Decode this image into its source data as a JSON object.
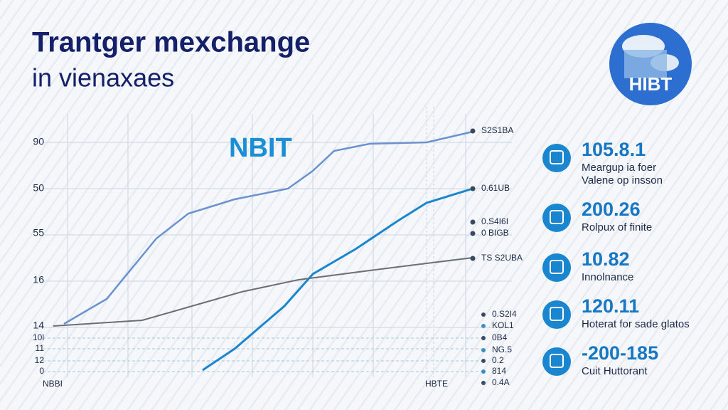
{
  "header": {
    "title_line1": "Trantger mexchange",
    "title_line2": "in vienaxaes"
  },
  "logo": {
    "text": "HIBT"
  },
  "chart": {
    "watermark": "NBIT",
    "y_labels": [
      "90",
      "50",
      "55",
      "16",
      "14",
      "10l",
      "11",
      "12",
      "0"
    ],
    "bottom_labels": [
      "NBBI",
      "HBTE"
    ],
    "line_end_labels": [
      "S2S1BA",
      "0.61UB",
      "0.S4I6I",
      "0 BIGB",
      "TS S2UBA"
    ],
    "lower_labels": [
      "0.S2I4",
      "KOL1",
      "0B4",
      "NG.5",
      "0.2",
      "814",
      "0.4A"
    ]
  },
  "stats": [
    {
      "value": "105.8.1",
      "lines": [
        "Meargup ia foer",
        "Valene op insson"
      ]
    },
    {
      "value": "200.26",
      "lines": [
        "Rolpux of finite"
      ]
    },
    {
      "value": "10.82",
      "lines": [
        "Innolnance"
      ]
    },
    {
      "value": "120.11",
      "lines": [
        "Hoterat for sade glatos"
      ]
    },
    {
      "value": "-200-185",
      "lines": [
        "Cuit Huttorant"
      ]
    }
  ]
}
